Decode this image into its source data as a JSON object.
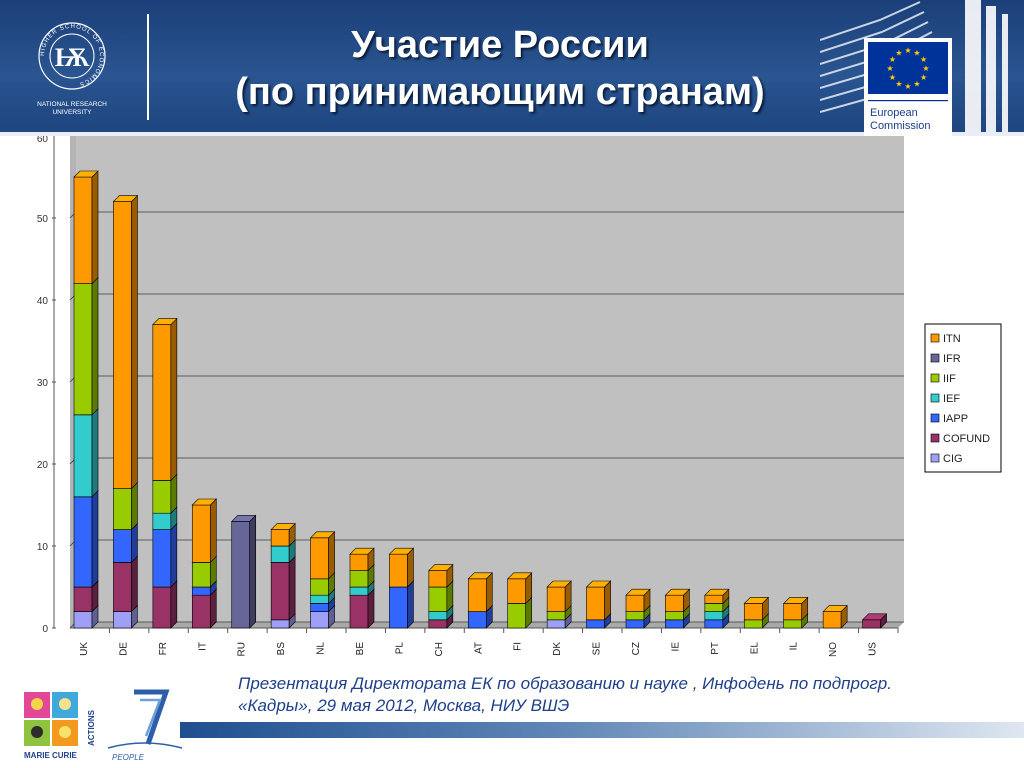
{
  "slide": {
    "title_line1": "Участие России",
    "title_line2": "(по принимающим странам)",
    "caption_line1": "Презентация Директората ЕК по образованию и науке , Инфодень по подпрогр.",
    "caption_line2": "«Кадры», 29 мая 2012, Москва, НИУ ВШЭ"
  },
  "logos": {
    "hse_seal_text": "HIGHER SCHOOL OF ECONOMICS",
    "hse_caption_line1": "NATIONAL RESEARCH",
    "hse_caption_line2": "UNIVERSITY",
    "ec_line1": "European",
    "ec_line2": "Commission",
    "mc_label": "MARIE CURIE",
    "mc_actions": "ACTIONS",
    "fp7_label": "PEOPLE"
  },
  "colors": {
    "header_bg": "#1f4a86",
    "title_text": "#ffffff",
    "caption_text": "#1f3f8a",
    "plot_bg": "#c0c0c0"
  },
  "chart_data": {
    "type": "bar",
    "stacked": true,
    "three_d": true,
    "categories": [
      "UK",
      "DE",
      "FR",
      "IT",
      "RU",
      "BS",
      "NL",
      "BE",
      "PL",
      "CH",
      "AT",
      "FI",
      "DK",
      "SE",
      "CZ",
      "IE",
      "PT",
      "EL",
      "IL",
      "NO",
      "US"
    ],
    "ylim": [
      0,
      60
    ],
    "yticks": [
      0,
      10,
      20,
      30,
      40,
      50
    ],
    "ytick_top_label": "60",
    "grid": true,
    "legend_position": "right",
    "legend_order": [
      "ITN",
      "IFR",
      "IIF",
      "IEF",
      "IAPP",
      "COFUND",
      "CIG"
    ],
    "series": [
      {
        "name": "CIG",
        "color": "#9f9ff7",
        "values": [
          2,
          2,
          0,
          0,
          0,
          1,
          2,
          0,
          0,
          0,
          0,
          0,
          1,
          0,
          0,
          0,
          0,
          0,
          0,
          0,
          0
        ]
      },
      {
        "name": "COFUND",
        "color": "#993366",
        "values": [
          3,
          6,
          5,
          4,
          0,
          7,
          0,
          4,
          0,
          1,
          0,
          0,
          0,
          0,
          0,
          0,
          0,
          0,
          0,
          0,
          1
        ]
      },
      {
        "name": "IAPP",
        "color": "#3366ff",
        "values": [
          11,
          4,
          7,
          1,
          0,
          0,
          1,
          0,
          5,
          0,
          2,
          0,
          0,
          1,
          1,
          1,
          1,
          0,
          0,
          0,
          0
        ]
      },
      {
        "name": "IEF",
        "color": "#33cccc",
        "values": [
          10,
          0,
          2,
          0,
          0,
          2,
          1,
          1,
          0,
          1,
          0,
          0,
          0,
          0,
          0,
          0,
          1,
          0,
          0,
          0,
          0
        ]
      },
      {
        "name": "IIF",
        "color": "#99cc00",
        "values": [
          16,
          5,
          4,
          3,
          0,
          0,
          2,
          2,
          0,
          3,
          0,
          3,
          1,
          0,
          1,
          1,
          1,
          1,
          1,
          0,
          0
        ]
      },
      {
        "name": "IFR",
        "color": "#666699",
        "values": [
          0,
          0,
          0,
          0,
          13,
          0,
          0,
          0,
          0,
          0,
          0,
          0,
          0,
          0,
          0,
          0,
          0,
          0,
          0,
          0,
          0
        ]
      },
      {
        "name": "ITN",
        "color": "#ff9900",
        "values": [
          13,
          35,
          19,
          7,
          0,
          2,
          5,
          2,
          4,
          2,
          4,
          3,
          3,
          4,
          2,
          2,
          1,
          2,
          2,
          2,
          0
        ]
      }
    ]
  }
}
